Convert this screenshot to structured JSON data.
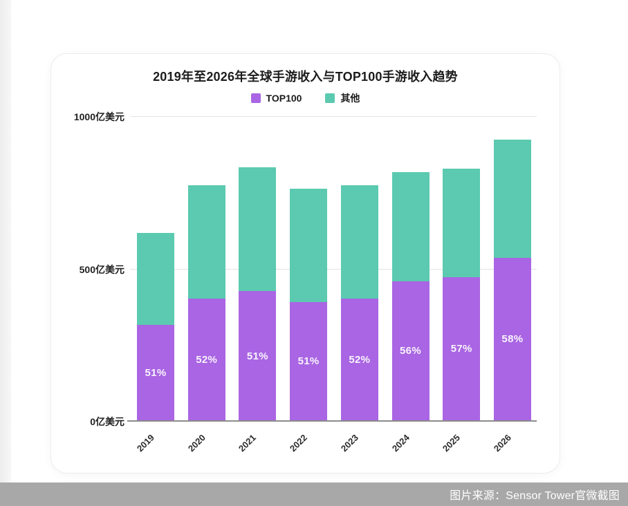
{
  "page": {
    "caption": "图片来源：Sensor Tower官微截图"
  },
  "chart": {
    "title": "2019年至2026年全球手游收入与TOP100手游收入趋势",
    "y_axis_labels": [
      "1000亿美元",
      "500亿美元",
      "0亿美元"
    ]
  },
  "chart_data": {
    "type": "bar",
    "stacked": true,
    "title": "2019年至2026年全球手游收入与TOP100手游收入趋势",
    "categories": [
      "2019",
      "2020",
      "2021",
      "2022",
      "2023",
      "2024",
      "2025",
      "2026"
    ],
    "series": [
      {
        "name": "TOP100",
        "color": "#a965e3",
        "values": [
          314,
          400,
          423,
          388,
          400,
          456,
          470,
          534
        ]
      },
      {
        "name": "其他",
        "color": "#5bcab0",
        "values": [
          301,
          370,
          407,
          372,
          370,
          359,
          355,
          386
        ]
      }
    ],
    "totals": [
      615,
      770,
      830,
      760,
      770,
      815,
      825,
      920
    ],
    "bar_labels": [
      "51%",
      "52%",
      "51%",
      "51%",
      "52%",
      "56%",
      "57%",
      "58%"
    ],
    "ylabel_unit": "亿美元",
    "ylim": [
      0,
      1000
    ],
    "yticks": [
      0,
      500,
      1000
    ],
    "grid": true,
    "legend_position": "top"
  }
}
